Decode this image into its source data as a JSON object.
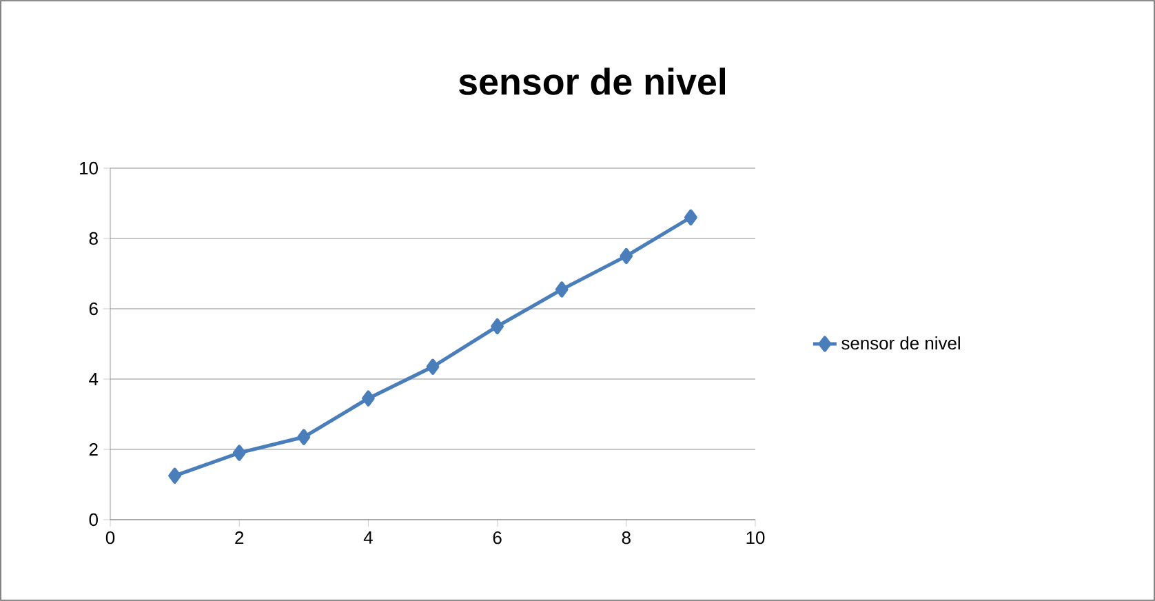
{
  "chart_data": {
    "type": "line",
    "title": "sensor de nivel",
    "x": [
      1,
      2,
      3,
      4,
      5,
      6,
      7,
      8,
      9
    ],
    "series": [
      {
        "name": "sensor de nivel",
        "color": "#4a7ebb",
        "values": [
          1.25,
          1.9,
          2.35,
          3.45,
          4.35,
          5.5,
          6.55,
          7.5,
          8.6
        ]
      }
    ],
    "xlim": [
      0,
      10
    ],
    "ylim": [
      0,
      10
    ],
    "xticks": [
      0,
      2,
      4,
      6,
      8,
      10
    ],
    "yticks": [
      0,
      2,
      4,
      6,
      8,
      10
    ],
    "grid": "y",
    "legend": "right",
    "marker": "diamond",
    "line_style": "solid"
  }
}
